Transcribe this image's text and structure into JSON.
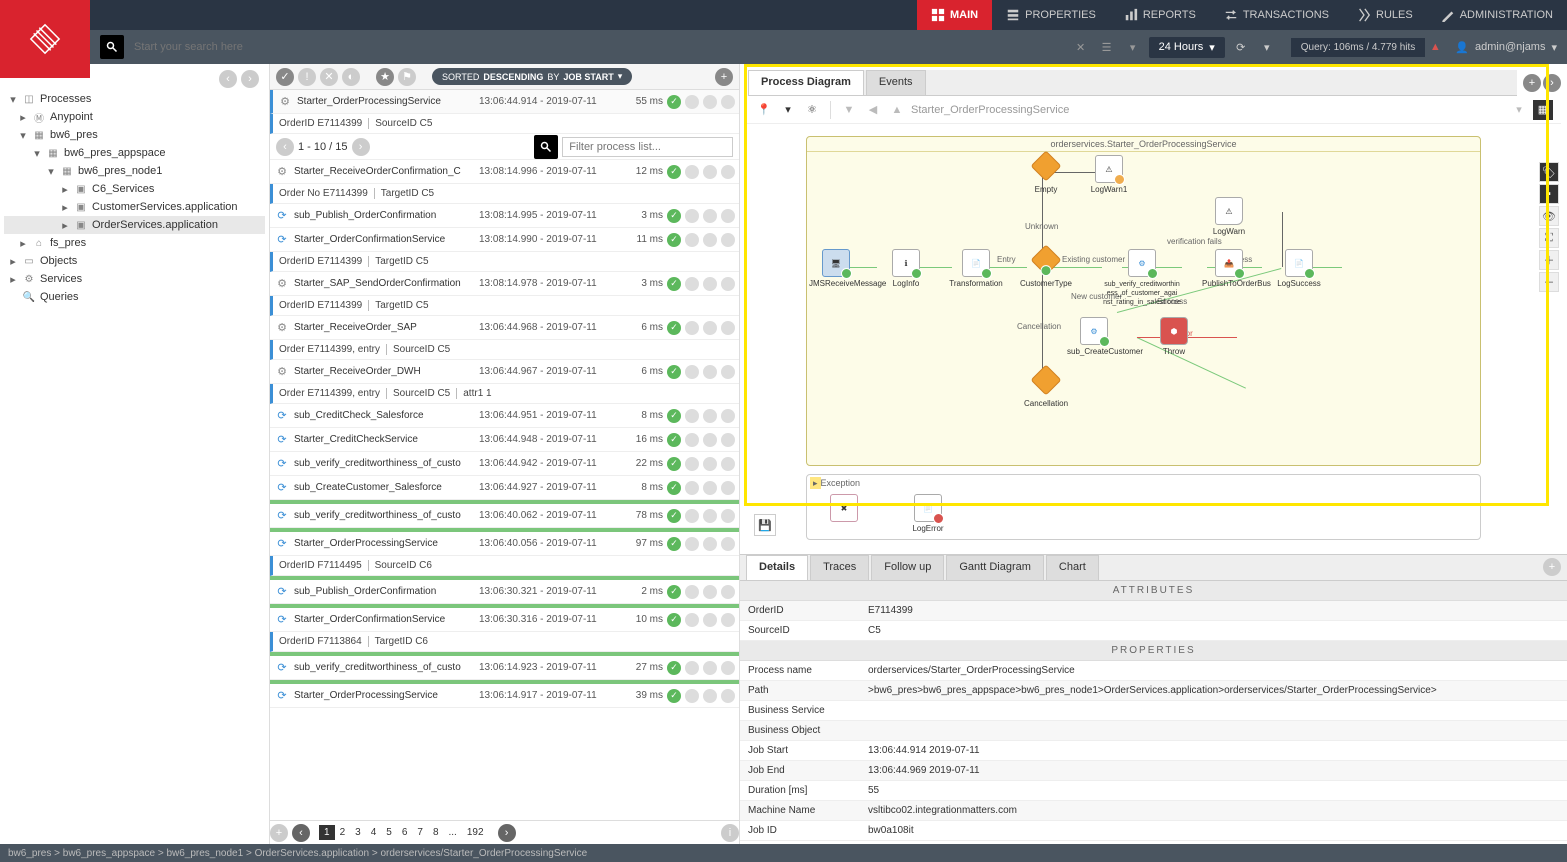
{
  "nav": {
    "main": "MAIN",
    "properties": "PROPERTIES",
    "reports": "REPORTS",
    "transactions": "TRANSACTIONS",
    "rules": "RULES",
    "administration": "ADMINISTRATION"
  },
  "search": {
    "placeholder": "Start your search here"
  },
  "timeSel": "24 Hours",
  "queryInfo": "Query: 106ms / 4.779 hits",
  "user": "admin@njams",
  "tree": {
    "root": "Processes",
    "anypoint": "Anypoint",
    "bw6": "bw6_pres",
    "appspace": "bw6_pres_appspace",
    "node1": "bw6_pres_node1",
    "c6": "C6_Services",
    "cust": "CustomerServices.application",
    "order": "OrderServices.application",
    "fs": "fs_pres",
    "objects": "Objects",
    "services": "Services",
    "queries": "Queries"
  },
  "sort": {
    "pre": "SORTED ",
    "dir": "DESCENDING",
    "by": " BY ",
    "col": "JOB START"
  },
  "pagRange": "1 - 10 / 15",
  "filterPh": "Filter process list...",
  "list": [
    {
      "ico": "gear",
      "name": "Starter_OrderProcessingService",
      "time": "13:06:44.914 - 2019-07-11",
      "dur": "55 ms"
    },
    {
      "attrs": [
        "OrderID E7114399",
        "SourceID C5"
      ]
    },
    {
      "pag": true
    },
    {
      "ico": "gear",
      "name": "Starter_ReceiveOrderConfirmation_C",
      "time": "13:08:14.996 - 2019-07-11",
      "dur": "12 ms"
    },
    {
      "attrs": [
        "Order No E7114399",
        "TargetID C5"
      ]
    },
    {
      "ico": "sub",
      "name": "sub_Publish_OrderConfirmation",
      "time": "13:08:14.995 - 2019-07-11",
      "dur": "3 ms"
    },
    {
      "ico": "sub",
      "name": "Starter_OrderConfirmationService",
      "time": "13:08:14.990 - 2019-07-11",
      "dur": "11 ms"
    },
    {
      "attrs": [
        "OrderID E7114399",
        "TargetID C5"
      ]
    },
    {
      "ico": "gear",
      "name": "Starter_SAP_SendOrderConfirmation",
      "time": "13:08:14.978 - 2019-07-11",
      "dur": "3 ms"
    },
    {
      "attrs": [
        "OrderID E7114399",
        "TargetID C5"
      ]
    },
    {
      "ico": "gear",
      "name": "Starter_ReceiveOrder_SAP",
      "time": "13:06:44.968 - 2019-07-11",
      "dur": "6 ms"
    },
    {
      "attrs": [
        "Order E7114399, entry",
        "SourceID C5"
      ]
    },
    {
      "ico": "gear",
      "name": "Starter_ReceiveOrder_DWH",
      "time": "13:06:44.967 - 2019-07-11",
      "dur": "6 ms"
    },
    {
      "attrs": [
        "Order E7114399, entry",
        "SourceID C5",
        "attr1 1"
      ]
    },
    {
      "ico": "sub",
      "name": "sub_CreditCheck_Salesforce",
      "time": "13:06:44.951 - 2019-07-11",
      "dur": "8 ms"
    },
    {
      "ico": "sub",
      "name": "Starter_CreditCheckService",
      "time": "13:06:44.948 - 2019-07-11",
      "dur": "16 ms"
    },
    {
      "ico": "sub",
      "name": "sub_verify_creditworthiness_of_custo",
      "time": "13:06:44.942 - 2019-07-11",
      "dur": "22 ms"
    },
    {
      "ico": "sub",
      "name": "sub_CreateCustomer_Salesforce",
      "time": "13:06:44.927 - 2019-07-11",
      "dur": "8 ms"
    },
    {
      "grn": true
    },
    {
      "ico": "sub",
      "name": "sub_verify_creditworthiness_of_custo",
      "time": "13:06:40.062 - 2019-07-11",
      "dur": "78 ms"
    },
    {
      "grn": true
    },
    {
      "ico": "sub",
      "name": "Starter_OrderProcessingService",
      "time": "13:06:40.056 - 2019-07-11",
      "dur": "97 ms"
    },
    {
      "attrs": [
        "OrderID F7114495",
        "SourceID C6"
      ]
    },
    {
      "grn": true
    },
    {
      "ico": "sub",
      "name": "sub_Publish_OrderConfirmation",
      "time": "13:06:30.321 - 2019-07-11",
      "dur": "2 ms"
    },
    {
      "grn": true
    },
    {
      "ico": "sub",
      "name": "Starter_OrderConfirmationService",
      "time": "13:06:30.316 - 2019-07-11",
      "dur": "10 ms"
    },
    {
      "attrs": [
        "OrderID F7113864",
        "TargetID C6"
      ]
    },
    {
      "grn": true
    },
    {
      "ico": "sub",
      "name": "sub_verify_creditworthiness_of_custo",
      "time": "13:06:14.923 - 2019-07-11",
      "dur": "27 ms"
    },
    {
      "grn": true
    },
    {
      "ico": "sub",
      "name": "Starter_OrderProcessingService",
      "time": "13:06:14.917 - 2019-07-11",
      "dur": "39 ms"
    }
  ],
  "pages": [
    "1",
    "2",
    "3",
    "4",
    "5",
    "6",
    "7",
    "8",
    "...",
    "192"
  ],
  "rtabs": {
    "pd": "Process Diagram",
    "ev": "Events"
  },
  "crumb": "Starter_OrderProcessingService",
  "diagTitle": "orderservices.Starter_OrderProcessingService",
  "nodes": {
    "jms": "JMSReceiveMessage",
    "login": "LogInfo",
    "trans": "Transformation",
    "empty": "Empty",
    "logw1": "LogWarn1",
    "ctype": "CustomerType",
    "exist": "Existing customer",
    "newc": "New customer",
    "cancel": "Cancellation",
    "cancel2": "Cancellation",
    "sv": "sub_verify_creditworthin ess_of_customer_agai nst_rating_in_salesf orce",
    "scc": "sub_CreateCustomer",
    "logw": "LogWarn",
    "ver": "verification fails",
    "succ": "Success",
    "pub": "PublishToOrderBus",
    "logs": "LogSuccess",
    "throw": "Throw",
    "err": "Error",
    "entry": "Entry",
    "unk": "Unknown",
    "excp": "Exception",
    "logerr": "LogError"
  },
  "dtabs": {
    "det": "Details",
    "tr": "Traces",
    "fu": "Follow up",
    "gd": "Gantt Diagram",
    "ch": "Chart"
  },
  "sect": {
    "attr": "ATTRIBUTES",
    "prop": "PROPERTIES"
  },
  "kv": {
    "oid": {
      "k": "OrderID",
      "v": "E7114399"
    },
    "sid": {
      "k": "SourceID",
      "v": "C5"
    },
    "pname": {
      "k": "Process name",
      "v": "orderservices/Starter_OrderProcessingService"
    },
    "path": {
      "k": "Path",
      "v": ">bw6_pres>bw6_pres_appspace>bw6_pres_node1>OrderServices.application>orderservices/Starter_OrderProcessingService>"
    },
    "bs": {
      "k": "Business Service",
      "v": ""
    },
    "bo": {
      "k": "Business Object",
      "v": ""
    },
    "js": {
      "k": "Job Start",
      "v": "13:06:44.914   2019-07-11"
    },
    "je": {
      "k": "Job End",
      "v": "13:06:44.969   2019-07-11"
    },
    "dur": {
      "k": "Duration [ms]",
      "v": "55"
    },
    "mn": {
      "k": "Machine Name",
      "v": "vsltibco02.integrationmatters.com"
    },
    "jid": {
      "k": "Job ID",
      "v": "bw0a108it"
    }
  },
  "footer": "bw6_pres > bw6_pres_appspace > bw6_pres_node1 > OrderServices.application > orderservices/Starter_OrderProcessingService"
}
